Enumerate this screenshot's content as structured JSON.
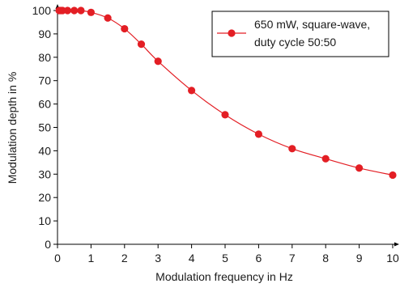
{
  "chart_data": {
    "type": "line",
    "title": "",
    "xlabel": "Modulation frequency in Hz",
    "ylabel": "Modulation depth in %",
    "xlim": [
      0,
      10
    ],
    "ylim": [
      0,
      100
    ],
    "xticks": [
      0,
      1,
      2,
      3,
      4,
      5,
      6,
      7,
      8,
      9,
      10
    ],
    "yticks": [
      0,
      10,
      20,
      30,
      40,
      50,
      60,
      70,
      80,
      90,
      100
    ],
    "grid": false,
    "legend_position": "top-right",
    "legend": {
      "line1": "650 mW, square-wave,",
      "line2": "duty cycle 50:50"
    },
    "series": [
      {
        "color": "#e31e24",
        "x": [
          0.05,
          0.1,
          0.15,
          0.3,
          0.5,
          0.7,
          1,
          1.5,
          2,
          2.5,
          3,
          4,
          5,
          6,
          7,
          8,
          9,
          10
        ],
        "y": [
          100,
          100,
          100,
          100,
          100,
          100,
          99.2,
          96.8,
          92.2,
          85.6,
          78.3,
          65.8,
          55.4,
          47.1,
          40.9,
          36.6,
          32.6,
          29.6
        ]
      }
    ]
  }
}
